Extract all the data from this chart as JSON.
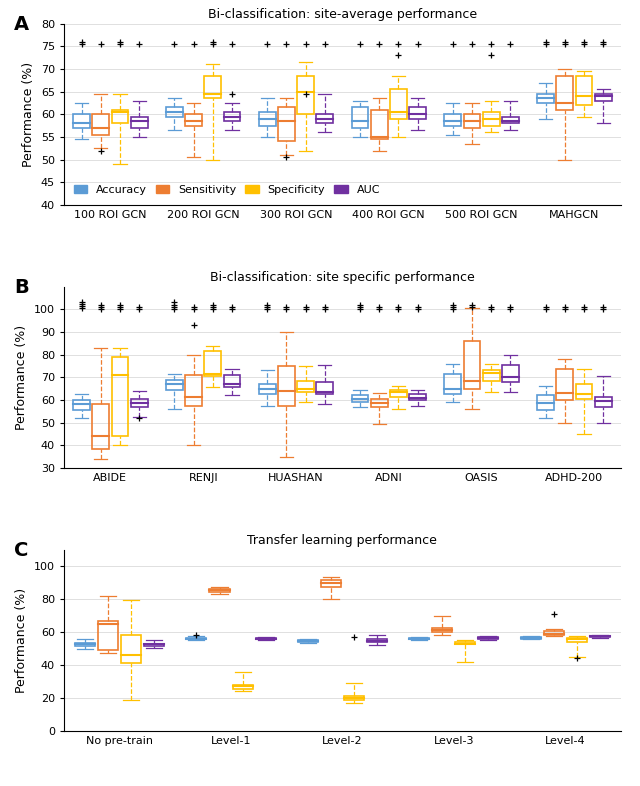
{
  "panel_A": {
    "title": "Bi-classification: site-average performance",
    "ylabel": "Performance (%)",
    "ylim": [
      40,
      80
    ],
    "yticks": [
      40,
      45,
      50,
      55,
      60,
      65,
      70,
      75,
      80
    ],
    "groups": [
      "100 ROI GCN",
      "200 ROI GCN",
      "300 ROI GCN",
      "400 ROI GCN",
      "500 ROI GCN",
      "MAHGCN"
    ],
    "series": {
      "Accuracy": {
        "color": "#5B9BD5",
        "boxes": [
          {
            "whislo": 54.5,
            "q1": 57.0,
            "med": 58.0,
            "q3": 60.0,
            "whishi": 62.5,
            "fliers": [
              75.5,
              76.0
            ]
          },
          {
            "whislo": 56.5,
            "q1": 59.5,
            "med": 60.5,
            "q3": 61.5,
            "whishi": 63.5,
            "fliers": [
              75.5
            ]
          },
          {
            "whislo": 55.0,
            "q1": 57.5,
            "med": 59.0,
            "q3": 60.5,
            "whishi": 63.5,
            "fliers": [
              75.5
            ]
          },
          {
            "whislo": 55.0,
            "q1": 57.0,
            "med": 58.5,
            "q3": 61.5,
            "whishi": 63.0,
            "fliers": [
              75.5
            ]
          },
          {
            "whislo": 55.5,
            "q1": 57.5,
            "med": 58.5,
            "q3": 60.0,
            "whishi": 62.5,
            "fliers": [
              75.5
            ]
          },
          {
            "whislo": 59.0,
            "q1": 62.5,
            "med": 63.5,
            "q3": 64.5,
            "whishi": 67.0,
            "fliers": [
              75.5,
              76.0
            ]
          }
        ]
      },
      "Sensitivity": {
        "color": "#ED7D31",
        "boxes": [
          {
            "whislo": 52.5,
            "q1": 55.5,
            "med": 57.0,
            "q3": 60.0,
            "whishi": 64.5,
            "fliers": [
              52.0,
              75.5
            ]
          },
          {
            "whislo": 50.5,
            "q1": 57.5,
            "med": 58.5,
            "q3": 60.0,
            "whishi": 62.5,
            "fliers": [
              75.5
            ]
          },
          {
            "whislo": 51.0,
            "q1": 54.0,
            "med": 58.5,
            "q3": 61.5,
            "whishi": 63.5,
            "fliers": [
              50.5,
              75.5
            ]
          },
          {
            "whislo": 52.0,
            "q1": 54.5,
            "med": 55.0,
            "q3": 61.0,
            "whishi": 63.5,
            "fliers": [
              75.5
            ]
          },
          {
            "whislo": 53.5,
            "q1": 57.0,
            "med": 58.5,
            "q3": 60.0,
            "whishi": 62.5,
            "fliers": [
              75.5
            ]
          },
          {
            "whislo": 50.0,
            "q1": 61.0,
            "med": 62.5,
            "q3": 68.5,
            "whishi": 70.0,
            "fliers": [
              75.5,
              76.0
            ]
          }
        ]
      },
      "Specificity": {
        "color": "#FFC000",
        "boxes": [
          {
            "whislo": 49.0,
            "q1": 58.0,
            "med": 60.5,
            "q3": 61.0,
            "whishi": 64.5,
            "fliers": [
              75.5,
              76.0
            ]
          },
          {
            "whislo": 50.0,
            "q1": 63.5,
            "med": 64.5,
            "q3": 68.5,
            "whishi": 71.0,
            "fliers": [
              75.5,
              76.0
            ]
          },
          {
            "whislo": 52.0,
            "q1": 60.0,
            "med": 65.0,
            "q3": 68.5,
            "whishi": 71.5,
            "fliers": [
              64.5,
              75.5
            ]
          },
          {
            "whislo": 55.0,
            "q1": 59.0,
            "med": 60.5,
            "q3": 65.5,
            "whishi": 68.5,
            "fliers": [
              73.0,
              75.5
            ]
          },
          {
            "whislo": 56.0,
            "q1": 57.5,
            "med": 59.0,
            "q3": 60.5,
            "whishi": 63.0,
            "fliers": [
              73.0,
              75.5
            ]
          },
          {
            "whislo": 59.5,
            "q1": 62.0,
            "med": 64.0,
            "q3": 68.5,
            "whishi": 69.5,
            "fliers": [
              75.5,
              76.0
            ]
          }
        ]
      },
      "AUC": {
        "color": "#7030A0",
        "boxes": [
          {
            "whislo": 55.0,
            "q1": 57.0,
            "med": 58.5,
            "q3": 59.5,
            "whishi": 63.0,
            "fliers": [
              75.5
            ]
          },
          {
            "whislo": 56.5,
            "q1": 58.5,
            "med": 59.5,
            "q3": 60.5,
            "whishi": 62.5,
            "fliers": [
              64.5,
              75.5
            ]
          },
          {
            "whislo": 56.0,
            "q1": 58.0,
            "med": 59.0,
            "q3": 60.0,
            "whishi": 64.5,
            "fliers": [
              75.5
            ]
          },
          {
            "whislo": 56.5,
            "q1": 59.0,
            "med": 60.0,
            "q3": 61.5,
            "whishi": 63.5,
            "fliers": [
              75.5
            ]
          },
          {
            "whislo": 56.5,
            "q1": 58.0,
            "med": 58.5,
            "q3": 59.5,
            "whishi": 63.0,
            "fliers": [
              75.5
            ]
          },
          {
            "whislo": 58.0,
            "q1": 63.0,
            "med": 64.0,
            "q3": 64.5,
            "whishi": 65.5,
            "fliers": [
              75.5,
              76.0
            ]
          }
        ]
      }
    }
  },
  "panel_B": {
    "title": "Bi-classification: site specific performance",
    "ylabel": "Performance (%)",
    "ylim": [
      30,
      110
    ],
    "yticks": [
      30,
      40,
      50,
      60,
      70,
      80,
      90,
      100
    ],
    "groups": [
      "ABIDE",
      "RENJI",
      "HUASHAN",
      "ADNI",
      "OASIS",
      "ADHD-200"
    ],
    "series": {
      "Accuracy": {
        "color": "#5B9BD5",
        "boxes": [
          {
            "whislo": 52.0,
            "q1": 55.5,
            "med": 58.0,
            "q3": 60.0,
            "whishi": 62.5,
            "fliers": [
              100.5,
              101.5,
              102.5,
              103.0
            ]
          },
          {
            "whislo": 56.0,
            "q1": 64.5,
            "med": 67.0,
            "q3": 69.0,
            "whishi": 71.5,
            "fliers": [
              100.0,
              101.0,
              102.0,
              103.0
            ]
          },
          {
            "whislo": 57.5,
            "q1": 62.5,
            "med": 65.0,
            "q3": 67.0,
            "whishi": 73.0,
            "fliers": [
              100.0,
              101.0,
              102.0
            ]
          },
          {
            "whislo": 57.0,
            "q1": 59.0,
            "med": 60.5,
            "q3": 62.0,
            "whishi": 64.5,
            "fliers": [
              100.0,
              101.0,
              102.0
            ]
          },
          {
            "whislo": 59.0,
            "q1": 62.5,
            "med": 65.0,
            "q3": 71.5,
            "whishi": 76.0,
            "fliers": [
              100.0,
              101.0,
              102.0
            ]
          },
          {
            "whislo": 52.0,
            "q1": 55.5,
            "med": 58.5,
            "q3": 62.0,
            "whishi": 66.0,
            "fliers": [
              100.0,
              101.0
            ]
          }
        ]
      },
      "Sensitivity": {
        "color": "#ED7D31",
        "boxes": [
          {
            "whislo": 34.0,
            "q1": 38.5,
            "med": 44.0,
            "q3": 58.0,
            "whishi": 83.0,
            "fliers": [
              100.0,
              101.0,
              102.0
            ]
          },
          {
            "whislo": 40.0,
            "q1": 57.5,
            "med": 61.5,
            "q3": 71.0,
            "whishi": 80.0,
            "fliers": [
              93.0,
              100.0,
              101.0
            ]
          },
          {
            "whislo": 35.0,
            "q1": 57.5,
            "med": 64.0,
            "q3": 75.0,
            "whishi": 90.0,
            "fliers": [
              100.0,
              101.0
            ]
          },
          {
            "whislo": 49.5,
            "q1": 57.0,
            "med": 58.5,
            "q3": 60.5,
            "whishi": 63.0,
            "fliers": [
              100.0,
              101.0
            ]
          },
          {
            "whislo": 56.0,
            "q1": 65.0,
            "med": 68.5,
            "q3": 86.0,
            "whishi": 100.5,
            "fliers": [
              101.0,
              102.0
            ]
          },
          {
            "whislo": 50.0,
            "q1": 60.0,
            "med": 63.0,
            "q3": 73.5,
            "whishi": 78.0,
            "fliers": [
              100.0,
              101.0
            ]
          }
        ]
      },
      "Specificity": {
        "color": "#FFC000",
        "boxes": [
          {
            "whislo": 40.0,
            "q1": 44.0,
            "med": 71.0,
            "q3": 79.0,
            "whishi": 83.0,
            "fliers": [
              100.0,
              101.0,
              102.0
            ]
          },
          {
            "whislo": 65.5,
            "q1": 70.5,
            "med": 71.5,
            "q3": 81.5,
            "whishi": 84.0,
            "fliers": [
              100.0,
              101.0,
              102.0
            ]
          },
          {
            "whislo": 59.0,
            "q1": 63.5,
            "med": 65.0,
            "q3": 68.5,
            "whishi": 75.0,
            "fliers": [
              100.0,
              101.0
            ]
          },
          {
            "whislo": 56.0,
            "q1": 61.5,
            "med": 63.5,
            "q3": 64.5,
            "whishi": 66.0,
            "fliers": [
              100.0,
              101.0
            ]
          },
          {
            "whislo": 63.5,
            "q1": 68.5,
            "med": 72.0,
            "q3": 73.0,
            "whishi": 76.0,
            "fliers": [
              100.0,
              101.0
            ]
          },
          {
            "whislo": 45.0,
            "q1": 60.5,
            "med": 62.5,
            "q3": 67.0,
            "whishi": 73.5,
            "fliers": [
              100.0,
              101.0
            ]
          }
        ]
      },
      "AUC": {
        "color": "#7030A0",
        "boxes": [
          {
            "whislo": 52.5,
            "q1": 57.0,
            "med": 58.5,
            "q3": 60.5,
            "whishi": 64.0,
            "fliers": [
              52.0,
              100.0,
              101.0
            ]
          },
          {
            "whislo": 62.0,
            "q1": 65.5,
            "med": 67.0,
            "q3": 71.0,
            "whishi": 73.5,
            "fliers": [
              100.0,
              101.0
            ]
          },
          {
            "whislo": 58.0,
            "q1": 62.5,
            "med": 63.5,
            "q3": 68.0,
            "whishi": 75.5,
            "fliers": [
              100.0,
              101.0
            ]
          },
          {
            "whislo": 57.5,
            "q1": 60.0,
            "med": 61.0,
            "q3": 62.5,
            "whishi": 64.5,
            "fliers": [
              100.0,
              101.0
            ]
          },
          {
            "whislo": 63.5,
            "q1": 68.0,
            "med": 70.0,
            "q3": 75.5,
            "whishi": 80.0,
            "fliers": [
              100.0,
              101.0
            ]
          },
          {
            "whislo": 50.0,
            "q1": 57.0,
            "med": 59.5,
            "q3": 61.5,
            "whishi": 70.5,
            "fliers": [
              100.0,
              101.0
            ]
          }
        ]
      }
    }
  },
  "panel_C": {
    "title": "Transfer learning performance",
    "ylabel": "Performance (%)",
    "ylim": [
      0,
      110
    ],
    "yticks": [
      0,
      20,
      40,
      60,
      80,
      100
    ],
    "groups": [
      "No pre-train",
      "Level-1",
      "Level-2",
      "Level-3",
      "Level-4"
    ],
    "series": {
      "Accuracy": {
        "color": "#5B9BD5",
        "boxes": [
          {
            "whislo": 50.0,
            "q1": 51.5,
            "med": 52.5,
            "q3": 53.5,
            "whishi": 55.5,
            "fliers": []
          },
          {
            "whislo": 55.0,
            "q1": 55.5,
            "med": 56.0,
            "q3": 56.5,
            "whishi": 57.5,
            "fliers": [
              58.5
            ]
          },
          {
            "whislo": 53.5,
            "q1": 54.0,
            "med": 54.5,
            "q3": 55.0,
            "whishi": 55.5,
            "fliers": []
          },
          {
            "whislo": 55.0,
            "q1": 55.5,
            "med": 56.0,
            "q3": 56.5,
            "whishi": 57.0,
            "fliers": []
          },
          {
            "whislo": 55.5,
            "q1": 56.0,
            "med": 56.5,
            "q3": 57.0,
            "whishi": 57.5,
            "fliers": []
          }
        ]
      },
      "Sensitivity": {
        "color": "#ED7D31",
        "boxes": [
          {
            "whislo": 47.0,
            "q1": 49.0,
            "med": 65.0,
            "q3": 67.0,
            "whishi": 82.0,
            "fliers": []
          },
          {
            "whislo": 83.0,
            "q1": 84.5,
            "med": 85.5,
            "q3": 86.0,
            "whishi": 87.5,
            "fliers": []
          },
          {
            "whislo": 80.0,
            "q1": 87.5,
            "med": 90.0,
            "q3": 91.5,
            "whishi": 93.5,
            "fliers": []
          },
          {
            "whislo": 58.0,
            "q1": 60.0,
            "med": 61.5,
            "q3": 62.5,
            "whishi": 70.0,
            "fliers": []
          },
          {
            "whislo": 57.5,
            "q1": 58.5,
            "med": 59.0,
            "q3": 60.5,
            "whishi": 62.0,
            "fliers": [
              71.0
            ]
          }
        ]
      },
      "Specificity": {
        "color": "#FFC000",
        "boxes": [
          {
            "whislo": 19.0,
            "q1": 41.5,
            "med": 46.0,
            "q3": 58.0,
            "whishi": 79.5,
            "fliers": []
          },
          {
            "whislo": 24.0,
            "q1": 25.5,
            "med": 27.0,
            "q3": 28.0,
            "whishi": 35.5,
            "fliers": []
          },
          {
            "whislo": 17.0,
            "q1": 18.5,
            "med": 20.0,
            "q3": 21.5,
            "whishi": 29.0,
            "fliers": [
              57.0
            ]
          },
          {
            "whislo": 42.0,
            "q1": 52.5,
            "med": 53.0,
            "q3": 54.0,
            "whishi": 55.0,
            "fliers": []
          },
          {
            "whislo": 45.0,
            "q1": 54.0,
            "med": 55.5,
            "q3": 56.5,
            "whishi": 57.5,
            "fliers": [
              44.0
            ]
          }
        ]
      },
      "AUC": {
        "color": "#7030A0",
        "boxes": [
          {
            "whislo": 50.5,
            "q1": 51.5,
            "med": 52.5,
            "q3": 53.0,
            "whishi": 55.0,
            "fliers": []
          },
          {
            "whislo": 55.0,
            "q1": 55.5,
            "med": 56.0,
            "q3": 56.5,
            "whishi": 57.0,
            "fliers": []
          },
          {
            "whislo": 52.0,
            "q1": 54.0,
            "med": 54.5,
            "q3": 55.5,
            "whishi": 58.5,
            "fliers": []
          },
          {
            "whislo": 55.0,
            "q1": 56.0,
            "med": 56.5,
            "q3": 57.0,
            "whishi": 57.5,
            "fliers": []
          },
          {
            "whislo": 56.5,
            "q1": 57.0,
            "med": 57.5,
            "q3": 57.5,
            "whishi": 58.5,
            "fliers": []
          }
        ]
      }
    }
  },
  "colors": {
    "Accuracy": "#5B9BD5",
    "Sensitivity": "#ED7D31",
    "Specificity": "#FFC000",
    "AUC": "#7030A0"
  },
  "legend_labels": [
    "Accuracy",
    "Sensitivity",
    "Specificity",
    "AUC"
  ],
  "panel_labels": [
    "A",
    "B",
    "C"
  ]
}
